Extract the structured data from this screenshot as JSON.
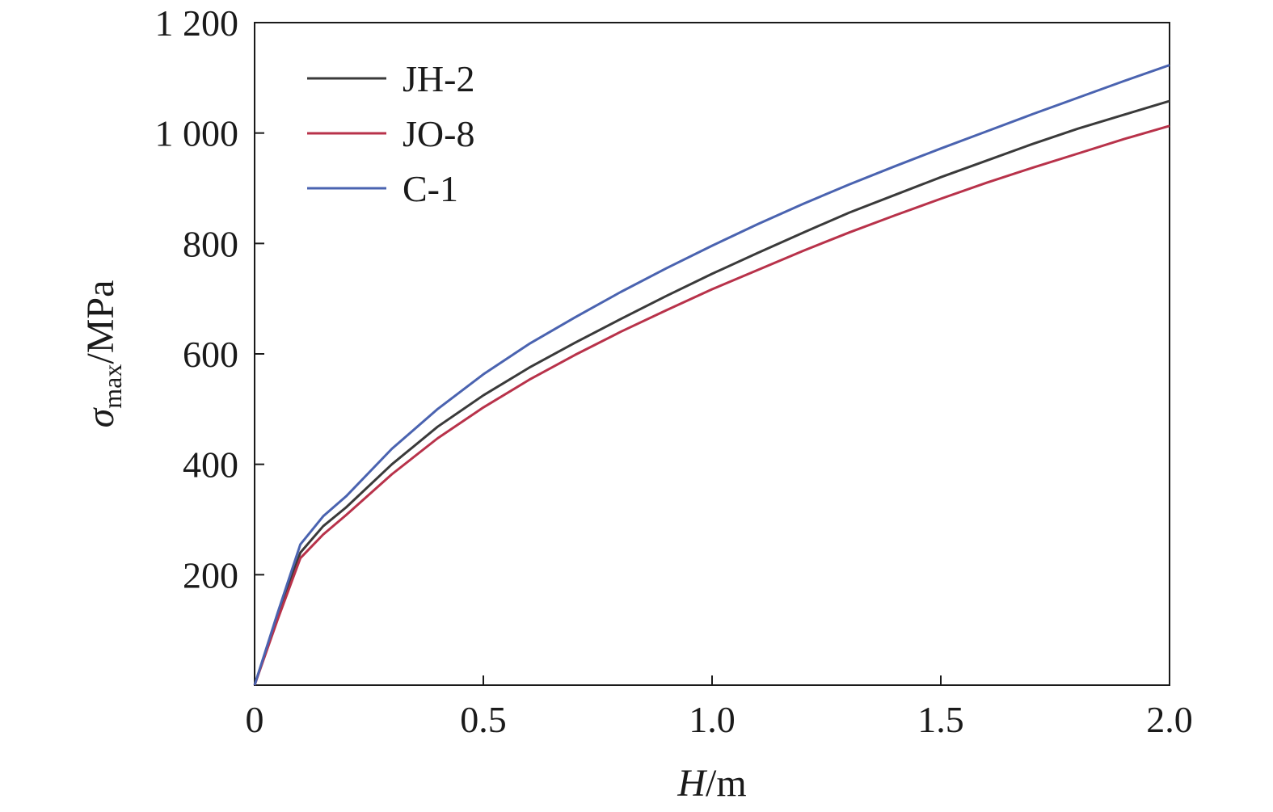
{
  "chart_data": {
    "type": "line",
    "xlabel": {
      "var": "H",
      "unit": "/m"
    },
    "ylabel": {
      "var": "σ",
      "sub": "max",
      "unit": "/MPa"
    },
    "xlim": [
      0,
      2.0
    ],
    "ylim": [
      0,
      1200
    ],
    "xticks": [
      {
        "value": 0,
        "label": "0"
      },
      {
        "value": 0.5,
        "label": "0.5"
      },
      {
        "value": 1.0,
        "label": "1.0"
      },
      {
        "value": 1.5,
        "label": "1.5"
      },
      {
        "value": 2.0,
        "label": "2.0"
      }
    ],
    "yticks": [
      {
        "value": 200,
        "label": "200"
      },
      {
        "value": 400,
        "label": "400"
      },
      {
        "value": 600,
        "label": "600"
      },
      {
        "value": 800,
        "label": "800"
      },
      {
        "value": 1000,
        "label": "1 000"
      },
      {
        "value": 1200,
        "label": "1 200"
      }
    ],
    "grid": false,
    "legend_position": "top-left",
    "x": [
      0,
      0.05,
      0.1,
      0.15,
      0.2,
      0.3,
      0.4,
      0.5,
      0.6,
      0.7,
      0.8,
      0.9,
      1.0,
      1.1,
      1.2,
      1.3,
      1.4,
      1.5,
      1.6,
      1.7,
      1.8,
      1.9,
      2.0
    ],
    "series": [
      {
        "name": "JH-2",
        "color": "#3a3a3a",
        "values": [
          0,
          125,
          240,
          288,
          322,
          400,
          468,
          525,
          575,
          620,
          663,
          705,
          745,
          783,
          820,
          856,
          888,
          920,
          950,
          980,
          1008,
          1033,
          1058
        ]
      },
      {
        "name": "JO-8",
        "color": "#b8324a",
        "values": [
          0,
          118,
          230,
          273,
          308,
          382,
          447,
          503,
          553,
          598,
          640,
          679,
          717,
          752,
          787,
          820,
          851,
          881,
          910,
          937,
          963,
          989,
          1013
        ]
      },
      {
        "name": "C-1",
        "color": "#4a63b0",
        "values": [
          0,
          130,
          255,
          306,
          342,
          428,
          500,
          563,
          618,
          666,
          712,
          755,
          796,
          835,
          872,
          907,
          940,
          972,
          1003,
          1034,
          1064,
          1094,
          1123
        ]
      }
    ]
  }
}
